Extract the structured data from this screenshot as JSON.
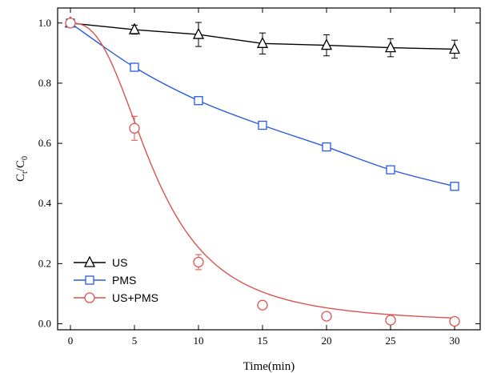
{
  "chart_data": {
    "type": "line",
    "title": "",
    "xlabel": "Time(min)",
    "ylabel_main": "C",
    "ylabel_sub1": "t",
    "ylabel_mid": "/C",
    "ylabel_sub2": "0",
    "xlim": [
      -1,
      32
    ],
    "ylim": [
      -0.02,
      1.05
    ],
    "xticks": [
      0,
      5,
      10,
      15,
      20,
      25,
      30
    ],
    "xtick_labels": [
      "0",
      "5",
      "10",
      "15",
      "20",
      "25",
      "30"
    ],
    "yticks": [
      0.0,
      0.2,
      0.4,
      0.6,
      0.8,
      1.0
    ],
    "ytick_labels": [
      "0.0",
      "0.2",
      "0.4",
      "0.6",
      "0.8",
      "1.0"
    ],
    "legend_position": "bottom-left",
    "x": [
      0,
      5,
      10,
      15,
      20,
      25,
      30
    ],
    "series": [
      {
        "name": "US",
        "color": "#000000",
        "marker": "triangle",
        "values": [
          1.0,
          0.978,
          0.962,
          0.932,
          0.926,
          0.918,
          0.913
        ],
        "errors": [
          0.0,
          0.015,
          0.04,
          0.035,
          0.035,
          0.03,
          0.03
        ],
        "curve": "linear"
      },
      {
        "name": "PMS",
        "color": "#2a5bd7",
        "marker": "square",
        "values": [
          1.0,
          0.853,
          0.742,
          0.66,
          0.588,
          0.512,
          0.457
        ],
        "errors": [
          0.0,
          0.0,
          0.0,
          0.0,
          0.0,
          0.0,
          0.0
        ],
        "curve": "smooth"
      },
      {
        "name": "US+PMS",
        "color": "#d9534f",
        "marker": "circle",
        "values": [
          1.0,
          0.65,
          0.205,
          0.062,
          0.025,
          0.012,
          0.008
        ],
        "errors": [
          0.0,
          0.04,
          0.025,
          0.0,
          0.0,
          0.0,
          0.0
        ],
        "curve": "fit"
      }
    ]
  }
}
